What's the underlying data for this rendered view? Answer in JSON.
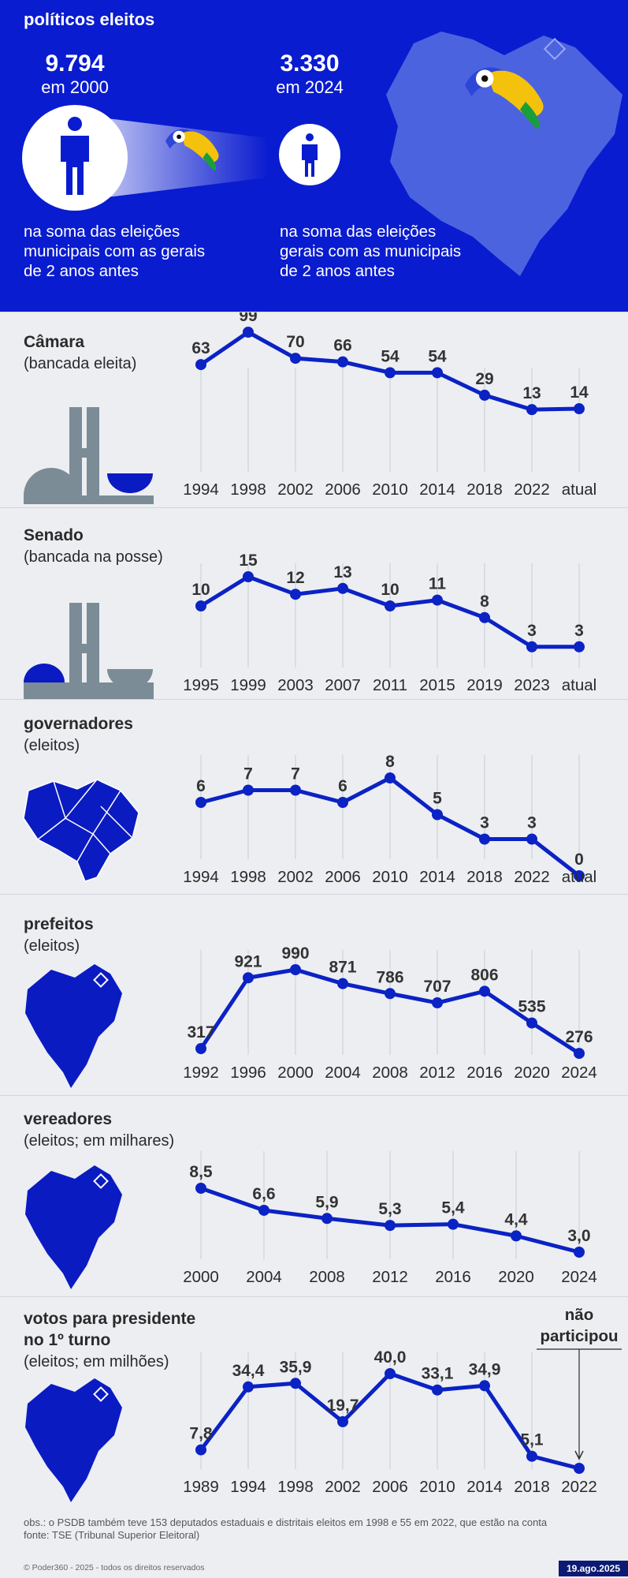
{
  "colors": {
    "brand_blue": "#0a1ccf",
    "line_blue": "#0b22c4",
    "building_gray": "#7c8c96",
    "map_blue": "#0b1bc2"
  },
  "header": {
    "title": "políticos eleitos",
    "left": {
      "value": "9.794",
      "year_label": "em 2000",
      "description": [
        "na soma das eleições",
        "municipais com as gerais",
        "de 2 anos antes"
      ]
    },
    "right": {
      "value": "3.330",
      "year_label": "em 2024",
      "description": [
        "na soma das eleições",
        "gerais com as municipais",
        "de 2 anos antes"
      ]
    },
    "icons": [
      "person-icon",
      "toucan-icon",
      "brazil-map-icon"
    ]
  },
  "chart_data": [
    {
      "id": "camara",
      "type": "line",
      "title": "Câmara",
      "subtitle": "(bancada eleita)",
      "icon": "congress-building-icon",
      "categories": [
        "1994",
        "1998",
        "2002",
        "2006",
        "2010",
        "2014",
        "2018",
        "2022",
        "atual"
      ],
      "values": [
        63,
        99,
        70,
        66,
        54,
        54,
        29,
        13,
        14
      ],
      "labels": [
        "63",
        "99",
        "70",
        "66",
        "54",
        "54",
        "29",
        "13",
        "14"
      ]
    },
    {
      "id": "senado",
      "type": "line",
      "title": "Senado",
      "subtitle": "(bancada na posse)",
      "icon": "congress-building-icon",
      "categories": [
        "1995",
        "1999",
        "2003",
        "2007",
        "2011",
        "2015",
        "2019",
        "2023",
        "atual"
      ],
      "values": [
        10,
        15,
        12,
        13,
        10,
        11,
        8,
        3,
        3
      ],
      "labels": [
        "10",
        "15",
        "12",
        "13",
        "10",
        "11",
        "8",
        "3",
        "3"
      ]
    },
    {
      "id": "governadores",
      "type": "line",
      "title": "governadores",
      "subtitle": "(eleitos)",
      "icon": "brazil-states-map-icon",
      "categories": [
        "1994",
        "1998",
        "2002",
        "2006",
        "2010",
        "2014",
        "2018",
        "2022",
        "atual"
      ],
      "values": [
        6,
        7,
        7,
        6,
        8,
        5,
        3,
        3,
        0
      ],
      "labels": [
        "6",
        "7",
        "7",
        "6",
        "8",
        "5",
        "3",
        "3",
        "0"
      ]
    },
    {
      "id": "prefeitos",
      "type": "line",
      "title": "prefeitos",
      "subtitle": "(eleitos)",
      "icon": "brazil-map-icon",
      "categories": [
        "1992",
        "1996",
        "2000",
        "2004",
        "2008",
        "2012",
        "2016",
        "2020",
        "2024"
      ],
      "values": [
        317,
        921,
        990,
        871,
        786,
        707,
        806,
        535,
        276
      ],
      "labels": [
        "317",
        "921",
        "990",
        "871",
        "786",
        "707",
        "806",
        "535",
        "276"
      ]
    },
    {
      "id": "vereadores",
      "type": "line",
      "title": "vereadores",
      "subtitle": "(eleitos; em milhares)",
      "icon": "brazil-map-icon",
      "categories": [
        "2000",
        "2004",
        "2008",
        "2012",
        "2016",
        "2020",
        "2024"
      ],
      "values": [
        8.5,
        6.6,
        5.9,
        5.3,
        5.4,
        4.4,
        3.0
      ],
      "labels": [
        "8,5",
        "6,6",
        "5,9",
        "5,3",
        "5,4",
        "4,4",
        "3,0"
      ]
    },
    {
      "id": "presidente",
      "type": "line",
      "title": "votos para presidente",
      "title2": "no 1º turno",
      "subtitle": "(eleitos; em milhões)",
      "icon": "brazil-map-icon",
      "categories": [
        "1989",
        "1994",
        "1998",
        "2002",
        "2006",
        "2010",
        "2014",
        "2018",
        "2022"
      ],
      "values": [
        7.8,
        34.4,
        35.9,
        19.7,
        40.0,
        33.1,
        34.9,
        5.1,
        0
      ],
      "labels": [
        "7,8",
        "34,4",
        "35,9",
        "19,7",
        "40,0",
        "33,1",
        "34,9",
        "5,1",
        ""
      ],
      "annotation": [
        "não",
        "participou"
      ]
    }
  ],
  "footer": {
    "obs": "obs.: o PSDB também teve 153 deputados estaduais e distritais eleitos em 1998 e 55 em 2022, que estão na conta",
    "source": "fonte: TSE (Tribunal Superior Eleitoral)",
    "copyright": "© Poder360 - 2025 - todos os direitos reservados",
    "date": "19.ago.2025"
  }
}
